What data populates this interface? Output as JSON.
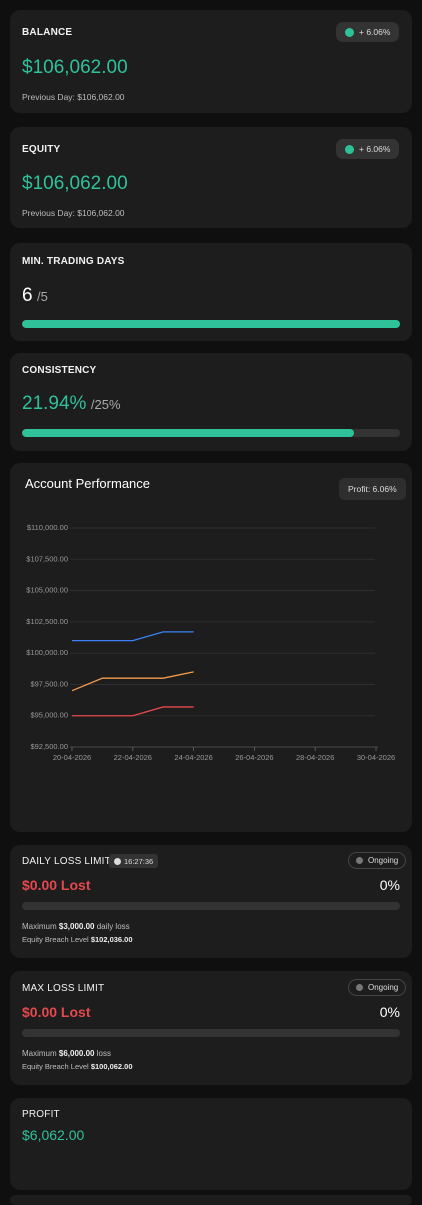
{
  "balance": {
    "title": "BALANCE",
    "change": "+ 6.06%",
    "value": "$106,062.00",
    "previous": "Previous Day: $106,062.00"
  },
  "equity": {
    "title": "EQUITY",
    "change": "+ 6.06%",
    "value": "$106,062.00",
    "previous": "Previous Day: $106,062.00"
  },
  "min_trading_days": {
    "title": "MIN. TRADING DAYS",
    "current": 6,
    "target": {
      "value": 5,
      "label": "/5"
    }
  },
  "consistency": {
    "title": "CONSISTENCY",
    "current": {
      "value": 21.94,
      "label": "21.94%"
    },
    "target": {
      "value": 25,
      "label": "/25%"
    }
  },
  "chart_data": {
    "type": "line",
    "title": "Account Performance",
    "annotation": "Profit: 6.06%",
    "x": [
      "20-04-2026",
      "21-04-2026",
      "22-04-2026",
      "23-04-2026",
      "24-04-2026"
    ],
    "series": [
      {
        "color": "#3b82f6",
        "values": [
          101000,
          101000,
          101000,
          101700,
          101700
        ]
      },
      {
        "color": "#f59e4b",
        "values": [
          97000,
          98000,
          98000,
          98000,
          98500
        ]
      },
      {
        "color": "#e5484d",
        "values": [
          95000,
          95000,
          95000,
          95700,
          95700
        ]
      }
    ],
    "xlim": [
      "20-04-2026",
      "30-04-2026"
    ],
    "xticks": [
      "20-04-2026",
      "22-04-2026",
      "24-04-2026",
      "26-04-2026",
      "28-04-2026",
      "30-04-2026"
    ],
    "ylim": [
      92500,
      110000
    ],
    "yticks": [
      {
        "value": 92500,
        "label": "$92,500.00"
      },
      {
        "value": 95000,
        "label": "$95,000.00"
      },
      {
        "value": 97500,
        "label": "$97,500.00"
      },
      {
        "value": 100000,
        "label": "$100,000.00"
      },
      {
        "value": 102500,
        "label": "$102,500.00"
      },
      {
        "value": 105000,
        "label": "$105,000.00"
      },
      {
        "value": 107500,
        "label": "$107,500.00"
      },
      {
        "value": 110000,
        "label": "$110,000.00"
      }
    ],
    "grid": true
  },
  "daily_loss_limit": {
    "title": "DAILY LOSS LIMIT",
    "timer": "16:27:36",
    "status": "Ongoing",
    "lost": "$0.00 Lost",
    "percent": {
      "value": 0,
      "label": "0%"
    },
    "max_prefix": "Maximum",
    "max_amount": "$3,000.00",
    "max_suffix": "daily loss",
    "breach_label": "Equity Breach Level",
    "breach_value": "$102,036.00"
  },
  "max_loss_limit": {
    "title": "MAX LOSS LIMIT",
    "status": "Ongoing",
    "lost": "$0.00 Lost",
    "percent": {
      "value": 0,
      "label": "0%"
    },
    "max_prefix": "Maximum",
    "max_amount": "$6,000.00",
    "max_suffix": "loss",
    "breach_label": "Equity Breach Level",
    "breach_value": "$100,062.00"
  },
  "profit": {
    "title": "PROFIT",
    "value": "$6,062.00"
  }
}
